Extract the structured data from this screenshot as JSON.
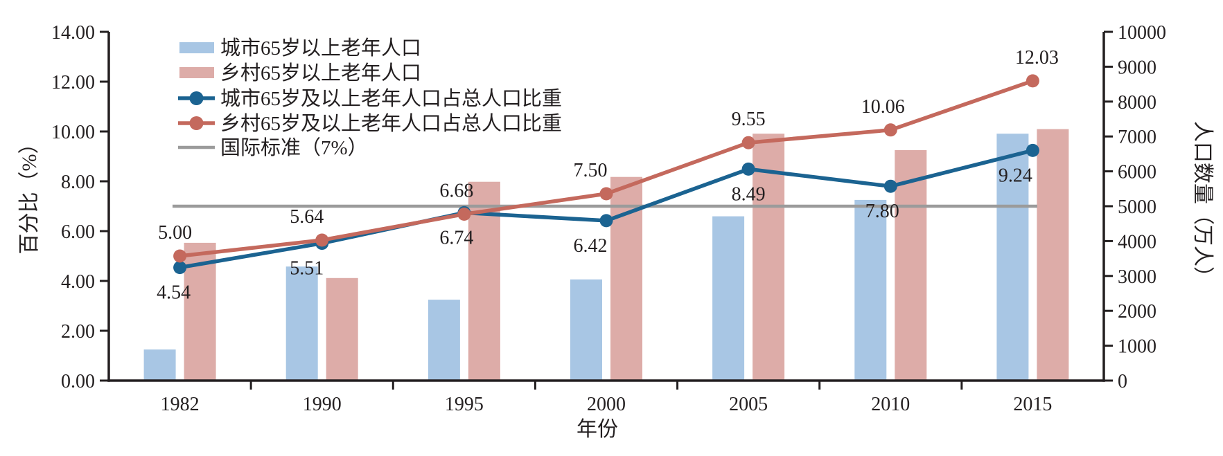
{
  "chart_data": {
    "type": "bar+line",
    "categories": [
      "1982",
      "1990",
      "1995",
      "2000",
      "2005",
      "2010",
      "2015"
    ],
    "xlabel": "年份",
    "ylabel_left": "百分比（%）",
    "ylabel_right": "人口数量（万人）",
    "left_axis": {
      "min": 0,
      "max": 14,
      "step": 2,
      "tick_labels": [
        "0.00",
        "2.00",
        "4.00",
        "6.00",
        "8.00",
        "10.00",
        "12.00",
        "14.00"
      ]
    },
    "right_axis": {
      "min": 0,
      "max": 10000,
      "step": 1000,
      "tick_labels": [
        "0",
        "1000",
        "2000",
        "3000",
        "4000",
        "5000",
        "6000",
        "7000",
        "8000",
        "9000",
        "10000"
      ]
    },
    "grid": false,
    "legend_position": "top-left-inside",
    "bar_series": [
      {
        "name": "城市65岁以上老年人口",
        "axis": "right",
        "color": "#a8c6e4",
        "values": [
          890,
          3270,
          2320,
          2900,
          4710,
          5180,
          7080
        ]
      },
      {
        "name": "乡村65岁以上老年人口",
        "axis": "right",
        "color": "#ddaca8",
        "values": [
          3950,
          2940,
          5700,
          5840,
          7080,
          6610,
          7210
        ]
      }
    ],
    "line_series": [
      {
        "name": "城市65岁及以上老年人口占总人口比重",
        "axis": "left",
        "color": "#1b6391",
        "values": [
          4.54,
          5.51,
          6.74,
          6.42,
          8.49,
          7.8,
          9.24
        ],
        "labels": [
          "4.54",
          "5.51",
          "6.74",
          "6.42",
          "8.49",
          "7.80",
          "9.24"
        ],
        "label_side": "below"
      },
      {
        "name": "乡村65岁及以上老年人口占总人口比重",
        "axis": "left",
        "color": "#c4695d",
        "values": [
          5.0,
          5.64,
          6.68,
          7.5,
          9.55,
          10.06,
          12.03
        ],
        "labels": [
          "5.00",
          "5.64",
          "6.68",
          "7.50",
          "9.55",
          "10.06",
          "12.03"
        ],
        "label_side": "above"
      }
    ],
    "reference_line": {
      "name": "国际标准（7%）",
      "axis": "left",
      "value": 7,
      "color": "#9b9b9b"
    },
    "colors": {
      "axis": "#231f20",
      "text": "#231f20",
      "urban_bar": "#a8c6e4",
      "rural_bar": "#ddaca8",
      "urban_line": "#1b6391",
      "rural_line": "#c4695d",
      "reference": "#9b9b9b"
    }
  }
}
